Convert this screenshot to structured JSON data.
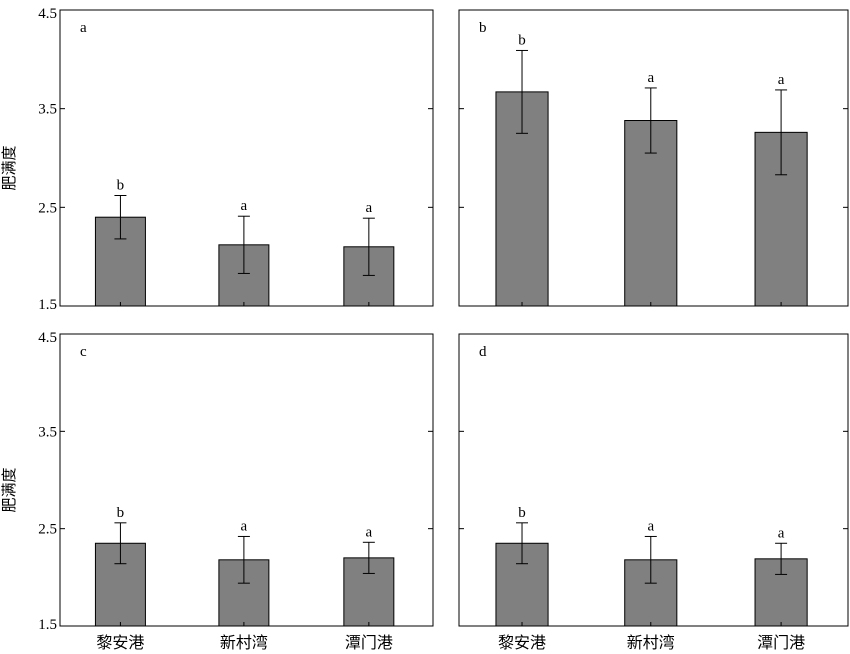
{
  "chart_data": [
    {
      "type": "bar",
      "panel_label": "a",
      "ylabel": "肥满度",
      "ylim": [
        1.5,
        4.5
      ],
      "yticks": [
        "4.5",
        "3.5",
        "2.5",
        "1.5"
      ],
      "categories": [
        "黎安港",
        "新村湾",
        "潭门港"
      ],
      "values": [
        2.4,
        2.12,
        2.1
      ],
      "errors": [
        0.22,
        0.29,
        0.29
      ],
      "significance": [
        "b",
        "a",
        "a"
      ],
      "bar_color": "#808080"
    },
    {
      "type": "bar",
      "panel_label": "b",
      "ylabel": "",
      "ylim": [
        1.5,
        4.5
      ],
      "yticks": [],
      "categories": [
        "黎安港",
        "新村湾",
        "潭门港"
      ],
      "values": [
        3.67,
        3.38,
        3.26
      ],
      "errors": [
        0.42,
        0.33,
        0.43
      ],
      "significance": [
        "b",
        "a",
        "a"
      ],
      "bar_color": "#808080"
    },
    {
      "type": "bar",
      "panel_label": "c",
      "ylabel": "肥满度",
      "ylim": [
        1.5,
        4.5
      ],
      "yticks": [
        "4.5",
        "3.5",
        "2.5",
        "1.5"
      ],
      "categories": [
        "黎安港",
        "新村湾",
        "潭门港"
      ],
      "values": [
        2.35,
        2.18,
        2.2
      ],
      "errors": [
        0.21,
        0.24,
        0.16
      ],
      "significance": [
        "b",
        "a",
        "a"
      ],
      "bar_color": "#808080"
    },
    {
      "type": "bar",
      "panel_label": "d",
      "ylabel": "",
      "ylim": [
        1.5,
        4.5
      ],
      "yticks": [],
      "categories": [
        "黎安港",
        "新村湾",
        "潭门港"
      ],
      "values": [
        2.35,
        2.18,
        2.19
      ],
      "errors": [
        0.21,
        0.24,
        0.16
      ],
      "significance": [
        "b",
        "a",
        "a"
      ],
      "bar_color": "#808080"
    }
  ]
}
